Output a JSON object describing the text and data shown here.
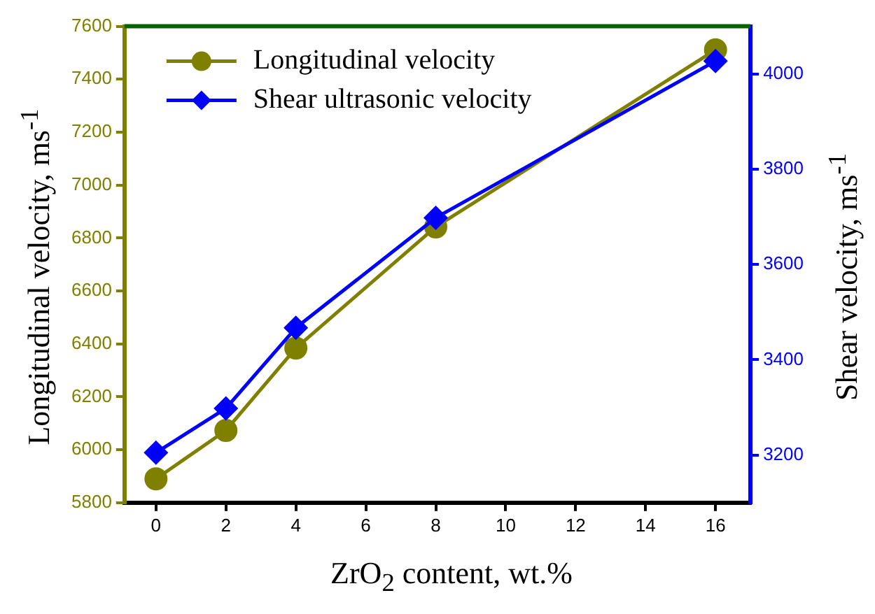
{
  "chart_data": {
    "type": "line",
    "xlabel": "ZrO$_{2}$ content, wt.%",
    "ylabel": "Longitudinal  velocity, ms$^{-1}$",
    "y2label": "Shear velocity, ms$^{-1}$",
    "x": [
      0,
      2,
      4,
      8,
      16
    ],
    "series": [
      {
        "name": "Longitudinal velocity",
        "color": "#808000",
        "values": [
          5890,
          6073,
          6384,
          6842,
          7511
        ],
        "marker": "circle"
      },
      {
        "name": "Shear ultrasonic velocity",
        "color": "#0000ff",
        "values": [
          3205,
          3298,
          3467,
          3698,
          4027
        ],
        "axis": "y2",
        "marker": "diamond"
      }
    ],
    "xlim": [
      -0.9,
      17
    ],
    "xticks": [
      0,
      2,
      4,
      6,
      8,
      10,
      12,
      14,
      16
    ],
    "ylim": [
      5800,
      7600
    ],
    "yticks": [
      5800,
      6000,
      6200,
      6400,
      6600,
      6800,
      7000,
      7200,
      7400,
      7600
    ],
    "y2lim": [
      3100,
      4100
    ],
    "y2ticks": [
      3200,
      3400,
      3600,
      3800,
      4000
    ],
    "legend": "top left",
    "line_style": "solid"
  }
}
